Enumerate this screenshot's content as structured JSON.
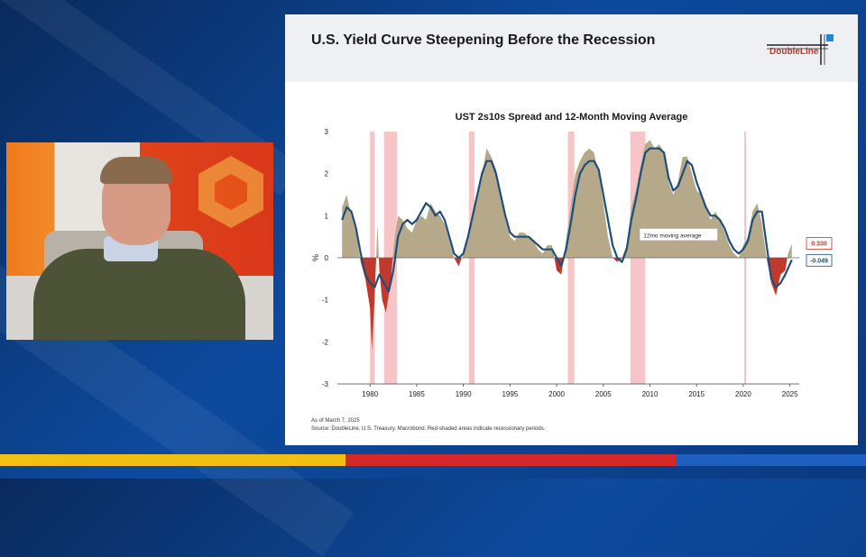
{
  "slide": {
    "title": "U.S. Yield Curve Steepening Before the Recession",
    "logo_text": "DoubleLine",
    "note_date": "As of March 7, 2025",
    "note_source": "Source: DoubleLine, U.S. Treasury, Macrobond. Red-shaded areas indicate recessionary periods."
  },
  "colors": {
    "positive": "#b5a98a",
    "negative": "#c0392b",
    "moving_average": "#1f4e79",
    "recession": "#f7c5c8"
  },
  "chart_data": {
    "type": "area",
    "title": "UST 2s10s Spread and 12-Month Moving Average",
    "xlabel": "",
    "ylabel": "%",
    "xlim": [
      1976.5,
      2026
    ],
    "ylim": [
      -3,
      3
    ],
    "x_ticks": [
      "1980",
      "1985",
      "1990",
      "1995",
      "2000",
      "2005",
      "2010",
      "2015",
      "2020",
      "2025"
    ],
    "y_ticks": [
      "3",
      "2",
      "1",
      "0",
      "-1",
      "-2",
      "-3"
    ],
    "recessions": [
      [
        1980.0,
        1980.5
      ],
      [
        1981.5,
        1982.9
      ],
      [
        1990.6,
        1991.2
      ],
      [
        2001.2,
        2001.9
      ],
      [
        2007.9,
        2009.5
      ],
      [
        2020.1,
        2020.3
      ]
    ],
    "series": [
      {
        "name": "UST 2s10s Spread",
        "points": [
          [
            1977.0,
            1.2
          ],
          [
            1977.5,
            1.5
          ],
          [
            1978.0,
            1.0
          ],
          [
            1978.5,
            0.6
          ],
          [
            1979.0,
            -0.1
          ],
          [
            1979.5,
            -0.5
          ],
          [
            1980.0,
            -1.2
          ],
          [
            1980.2,
            -2.2
          ],
          [
            1980.5,
            -0.9
          ],
          [
            1980.8,
            0.8
          ],
          [
            1981.0,
            -0.3
          ],
          [
            1981.3,
            -1.0
          ],
          [
            1981.7,
            -1.3
          ],
          [
            1982.2,
            -0.6
          ],
          [
            1982.6,
            0.4
          ],
          [
            1983.0,
            1.0
          ],
          [
            1983.5,
            0.9
          ],
          [
            1984.0,
            0.7
          ],
          [
            1984.5,
            0.6
          ],
          [
            1985.0,
            0.9
          ],
          [
            1985.5,
            1.0
          ],
          [
            1986.0,
            0.9
          ],
          [
            1986.5,
            1.3
          ],
          [
            1987.0,
            1.1
          ],
          [
            1987.5,
            1.0
          ],
          [
            1988.0,
            0.8
          ],
          [
            1988.5,
            0.4
          ],
          [
            1989.0,
            0.0
          ],
          [
            1989.5,
            -0.2
          ],
          [
            1990.0,
            0.1
          ],
          [
            1990.5,
            0.4
          ],
          [
            1991.0,
            1.0
          ],
          [
            1991.5,
            1.5
          ],
          [
            1992.0,
            2.0
          ],
          [
            1992.5,
            2.6
          ],
          [
            1993.0,
            2.4
          ],
          [
            1993.5,
            2.1
          ],
          [
            1994.0,
            1.5
          ],
          [
            1994.5,
            0.9
          ],
          [
            1995.0,
            0.5
          ],
          [
            1995.5,
            0.4
          ],
          [
            1996.0,
            0.6
          ],
          [
            1996.5,
            0.6
          ],
          [
            1997.0,
            0.5
          ],
          [
            1997.5,
            0.4
          ],
          [
            1998.0,
            0.2
          ],
          [
            1998.5,
            0.1
          ],
          [
            1999.0,
            0.3
          ],
          [
            1999.5,
            0.3
          ],
          [
            2000.0,
            -0.3
          ],
          [
            2000.5,
            -0.4
          ],
          [
            2001.0,
            0.4
          ],
          [
            2001.5,
            1.2
          ],
          [
            2002.0,
            2.0
          ],
          [
            2002.5,
            2.3
          ],
          [
            2003.0,
            2.5
          ],
          [
            2003.5,
            2.6
          ],
          [
            2004.0,
            2.5
          ],
          [
            2004.5,
            2.0
          ],
          [
            2005.0,
            1.3
          ],
          [
            2005.5,
            0.5
          ],
          [
            2006.0,
            0.0
          ],
          [
            2006.5,
            -0.1
          ],
          [
            2007.0,
            0.0
          ],
          [
            2007.5,
            0.3
          ],
          [
            2008.0,
            1.2
          ],
          [
            2008.5,
            1.6
          ],
          [
            2009.0,
            2.2
          ],
          [
            2009.5,
            2.7
          ],
          [
            2010.0,
            2.8
          ],
          [
            2010.5,
            2.6
          ],
          [
            2011.0,
            2.7
          ],
          [
            2011.5,
            2.5
          ],
          [
            2012.0,
            1.8
          ],
          [
            2012.5,
            1.5
          ],
          [
            2013.0,
            1.8
          ],
          [
            2013.5,
            2.4
          ],
          [
            2014.0,
            2.4
          ],
          [
            2014.5,
            2.0
          ],
          [
            2015.0,
            1.6
          ],
          [
            2015.5,
            1.5
          ],
          [
            2016.0,
            1.2
          ],
          [
            2016.5,
            0.9
          ],
          [
            2017.0,
            1.1
          ],
          [
            2017.5,
            0.9
          ],
          [
            2018.0,
            0.6
          ],
          [
            2018.5,
            0.3
          ],
          [
            2019.0,
            0.1
          ],
          [
            2019.5,
            0.0
          ],
          [
            2020.0,
            0.3
          ],
          [
            2020.5,
            0.5
          ],
          [
            2021.0,
            1.1
          ],
          [
            2021.5,
            1.3
          ],
          [
            2022.0,
            0.8
          ],
          [
            2022.5,
            0.0
          ],
          [
            2023.0,
            -0.6
          ],
          [
            2023.5,
            -0.9
          ],
          [
            2024.0,
            -0.4
          ],
          [
            2024.5,
            -0.3
          ],
          [
            2024.8,
            0.1
          ],
          [
            2025.2,
            0.33
          ]
        ]
      },
      {
        "name": "12mo moving average",
        "points": [
          [
            1977.0,
            0.9
          ],
          [
            1977.5,
            1.2
          ],
          [
            1978.0,
            1.1
          ],
          [
            1978.5,
            0.7
          ],
          [
            1979.0,
            0.1
          ],
          [
            1979.5,
            -0.4
          ],
          [
            1980.0,
            -0.6
          ],
          [
            1980.5,
            -0.7
          ],
          [
            1981.0,
            -0.4
          ],
          [
            1981.5,
            -0.6
          ],
          [
            1982.0,
            -0.8
          ],
          [
            1982.5,
            -0.3
          ],
          [
            1983.0,
            0.5
          ],
          [
            1983.5,
            0.8
          ],
          [
            1984.0,
            0.9
          ],
          [
            1984.5,
            0.8
          ],
          [
            1985.0,
            0.9
          ],
          [
            1985.5,
            1.1
          ],
          [
            1986.0,
            1.3
          ],
          [
            1986.5,
            1.2
          ],
          [
            1987.0,
            1.0
          ],
          [
            1987.5,
            1.1
          ],
          [
            1988.0,
            0.9
          ],
          [
            1988.5,
            0.5
          ],
          [
            1989.0,
            0.1
          ],
          [
            1989.5,
            0.0
          ],
          [
            1990.0,
            0.1
          ],
          [
            1990.5,
            0.5
          ],
          [
            1991.0,
            1.0
          ],
          [
            1991.5,
            1.5
          ],
          [
            1992.0,
            2.0
          ],
          [
            1992.5,
            2.3
          ],
          [
            1993.0,
            2.3
          ],
          [
            1993.5,
            2.0
          ],
          [
            1994.0,
            1.5
          ],
          [
            1994.5,
            1.0
          ],
          [
            1995.0,
            0.6
          ],
          [
            1995.5,
            0.5
          ],
          [
            1996.0,
            0.5
          ],
          [
            1996.5,
            0.5
          ],
          [
            1997.0,
            0.5
          ],
          [
            1997.5,
            0.4
          ],
          [
            1998.0,
            0.3
          ],
          [
            1998.5,
            0.2
          ],
          [
            1999.0,
            0.2
          ],
          [
            1999.5,
            0.2
          ],
          [
            2000.0,
            0.0
          ],
          [
            2000.5,
            -0.2
          ],
          [
            2001.0,
            0.2
          ],
          [
            2001.5,
            0.8
          ],
          [
            2002.0,
            1.5
          ],
          [
            2002.5,
            2.0
          ],
          [
            2003.0,
            2.2
          ],
          [
            2003.5,
            2.3
          ],
          [
            2004.0,
            2.3
          ],
          [
            2004.5,
            2.1
          ],
          [
            2005.0,
            1.5
          ],
          [
            2005.5,
            0.9
          ],
          [
            2006.0,
            0.3
          ],
          [
            2006.5,
            0.0
          ],
          [
            2007.0,
            -0.1
          ],
          [
            2007.5,
            0.2
          ],
          [
            2008.0,
            0.9
          ],
          [
            2008.5,
            1.4
          ],
          [
            2009.0,
            2.0
          ],
          [
            2009.5,
            2.5
          ],
          [
            2010.0,
            2.6
          ],
          [
            2010.5,
            2.6
          ],
          [
            2011.0,
            2.6
          ],
          [
            2011.5,
            2.5
          ],
          [
            2012.0,
            1.9
          ],
          [
            2012.5,
            1.6
          ],
          [
            2013.0,
            1.7
          ],
          [
            2013.5,
            2.0
          ],
          [
            2014.0,
            2.3
          ],
          [
            2014.5,
            2.2
          ],
          [
            2015.0,
            1.8
          ],
          [
            2015.5,
            1.5
          ],
          [
            2016.0,
            1.2
          ],
          [
            2016.5,
            1.0
          ],
          [
            2017.0,
            1.0
          ],
          [
            2017.5,
            0.9
          ],
          [
            2018.0,
            0.7
          ],
          [
            2018.5,
            0.4
          ],
          [
            2019.0,
            0.2
          ],
          [
            2019.5,
            0.1
          ],
          [
            2020.0,
            0.2
          ],
          [
            2020.5,
            0.4
          ],
          [
            2021.0,
            0.9
          ],
          [
            2021.5,
            1.1
          ],
          [
            2022.0,
            1.1
          ],
          [
            2022.5,
            0.3
          ],
          [
            2023.0,
            -0.5
          ],
          [
            2023.5,
            -0.7
          ],
          [
            2024.0,
            -0.6
          ],
          [
            2024.5,
            -0.4
          ],
          [
            2025.2,
            -0.049
          ]
        ]
      }
    ],
    "annotations": {
      "ma_label": "12mo moving average",
      "last_spread": "0.330",
      "last_ma": "-0.049"
    }
  }
}
